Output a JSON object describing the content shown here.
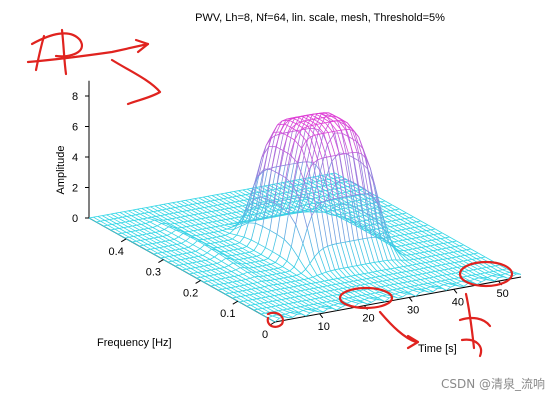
{
  "chart_data": {
    "type": "surface",
    "title": "PWV, Lh=8, Nf=64, lin. scale, mesh, Threshold=5%",
    "xlabel": "Time [s]",
    "ylabel": "Frequency [Hz]",
    "zlabel": "Amplitude",
    "x_ticks": [
      10,
      20,
      30,
      40,
      50
    ],
    "y_ticks": [
      0,
      0.1,
      0.2,
      0.3,
      0.4
    ],
    "z_ticks": [
      0,
      2,
      4,
      6,
      8
    ],
    "xlim": [
      0,
      55
    ],
    "ylim": [
      0,
      0.5
    ],
    "zlim": [
      0,
      9
    ],
    "peak": {
      "time": 30,
      "frequency": 0.25,
      "amplitude": 8.3
    },
    "colors": {
      "low": "#33d6e6",
      "high": "#e23fd6",
      "axes": "#000000"
    }
  },
  "watermark": "CSDN @清泉_流响"
}
